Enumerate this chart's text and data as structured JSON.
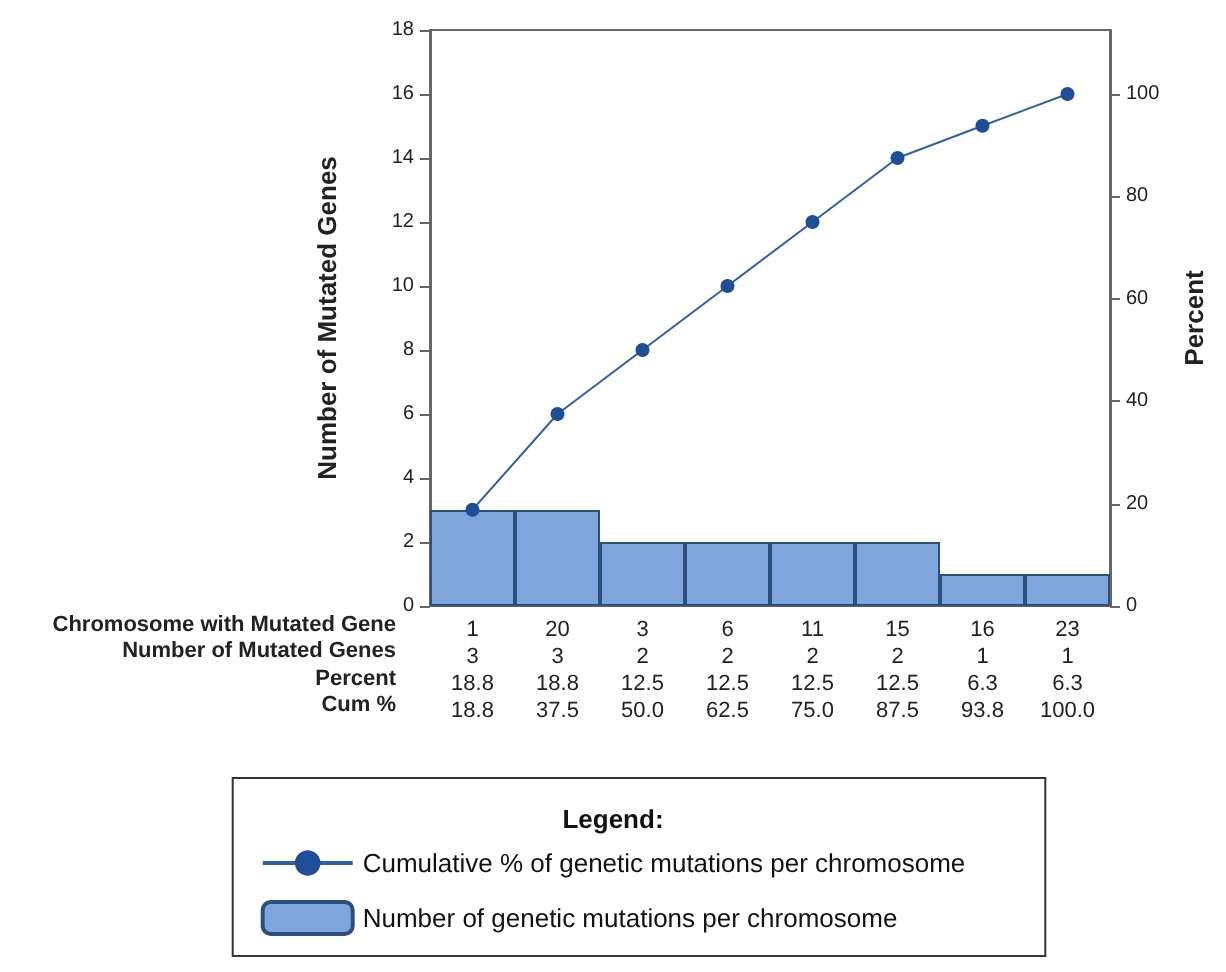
{
  "chart_data": {
    "type": "bar",
    "xlabel": "Chromosome with Mutated Gene",
    "ylabel": "Number of Mutated Genes",
    "y2label": "Percent",
    "legend_title": "Legend:",
    "legend": "bottom",
    "grid": false,
    "marker": "circle",
    "categories": [
      "1",
      "20",
      "3",
      "6",
      "11",
      "15",
      "16",
      "23"
    ],
    "series": [
      {
        "name": "Cumulative % of genetic mutations per chromosome",
        "type": "line",
        "axis": "y2",
        "color": "#2e5fa8",
        "values": [
          18.8,
          37.5,
          50.0,
          62.5,
          75.0,
          87.5,
          93.8,
          100.0
        ],
        "value_labels": [
          "18.8",
          "37.5",
          "50.0",
          "62.5",
          "75.0",
          "87.5",
          "93.8",
          "100.0"
        ]
      },
      {
        "name": "Number of genetic mutations per chromosome",
        "color": "#7ea6dc",
        "values": [
          3,
          3,
          2,
          2,
          2,
          2,
          1,
          1
        ],
        "value_labels": [
          "3",
          "3",
          "2",
          "2",
          "2",
          "2",
          "1",
          "1"
        ]
      }
    ],
    "ylim": [
      0,
      18
    ],
    "yticks": [
      0,
      2,
      4,
      6,
      8,
      10,
      12,
      14,
      16,
      18
    ],
    "y2lim": [
      0,
      112.5
    ],
    "y2ticks": [
      0,
      20,
      40,
      60,
      80,
      100
    ],
    "annotations": [
      "Number of Mutated Genes",
      "Percent",
      "Cum %",
      "18.8",
      "18.8",
      "12.5",
      "12.5",
      "12.5",
      "12.5",
      "6.3",
      "6.3"
    ]
  }
}
